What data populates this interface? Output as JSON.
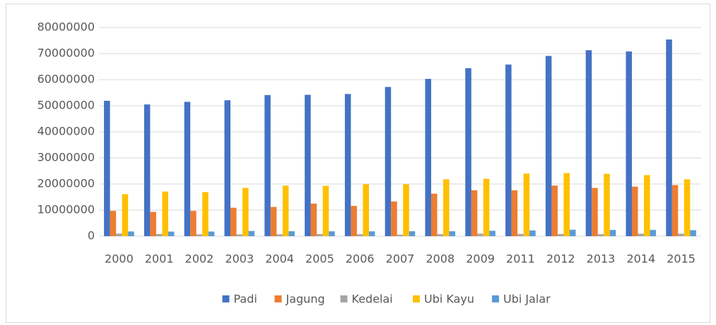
{
  "chart_data": {
    "type": "bar",
    "categories": [
      "2000",
      "2001",
      "2002",
      "2003",
      "2004",
      "2005",
      "2006",
      "2007",
      "2008",
      "2009",
      "2011",
      "2012",
      "2013",
      "2014",
      "2015"
    ],
    "series": [
      {
        "name": "Padi",
        "color": "#4472c4",
        "values": [
          51900000,
          50500000,
          51500000,
          52100000,
          54100000,
          54200000,
          54500000,
          57200000,
          60300000,
          64400000,
          65800000,
          69100000,
          71300000,
          70800000,
          75400000
        ]
      },
      {
        "name": "Jagung",
        "color": "#ed7d31",
        "values": [
          9700000,
          9300000,
          9700000,
          10900000,
          11200000,
          12500000,
          11600000,
          13300000,
          16300000,
          17600000,
          17600000,
          19400000,
          18500000,
          19000000,
          19600000
        ]
      },
      {
        "name": "Kedelai",
        "color": "#a5a5a5",
        "values": [
          1000000,
          830000,
          670000,
          670000,
          720000,
          810000,
          750000,
          590000,
          780000,
          970000,
          850000,
          840000,
          780000,
          950000,
          960000
        ]
      },
      {
        "name": "Ubi Kayu",
        "color": "#ffc000",
        "values": [
          16100000,
          17100000,
          16900000,
          18500000,
          19400000,
          19300000,
          19900000,
          19900000,
          21800000,
          22000000,
          24000000,
          24200000,
          23900000,
          23400000,
          21800000
        ]
      },
      {
        "name": "Ubi Jalar",
        "color": "#5b9bd5",
        "values": [
          1800000,
          1750000,
          1770000,
          1990000,
          1900000,
          1860000,
          1850000,
          1890000,
          1880000,
          2060000,
          2200000,
          2480000,
          2390000,
          2380000,
          2300000
        ]
      }
    ],
    "ylim": [
      0,
      80000000
    ],
    "yticks": [
      0,
      10000000,
      20000000,
      30000000,
      40000000,
      50000000,
      60000000,
      70000000,
      80000000
    ],
    "grid": true,
    "legend": "bottom"
  }
}
